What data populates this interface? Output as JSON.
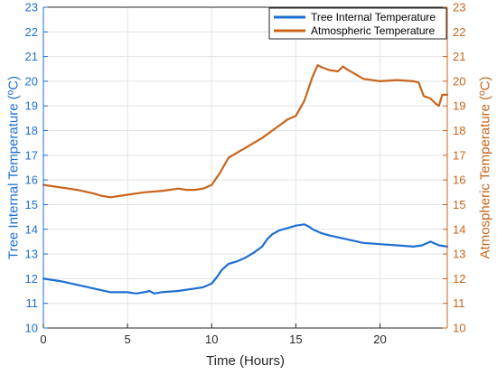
{
  "colors": {
    "tree": "#1f6fd1",
    "atmo": "#c8651b",
    "grid": "#dfe3ea",
    "axis": "#262626",
    "legend_border": "#262626"
  },
  "chart_data": {
    "type": "line",
    "xlabel": "Time (Hours)",
    "ylabel": "Tree Internal Temperature (ºC)",
    "ylabel_right": "Atmospheric Temperature (ºC)",
    "xlim": [
      0,
      24
    ],
    "ylim": [
      10,
      23
    ],
    "ylim_right": [
      10,
      23
    ],
    "xticks": [
      0,
      5,
      10,
      15,
      20
    ],
    "yticks": [
      10,
      11,
      12,
      13,
      14,
      15,
      16,
      17,
      18,
      19,
      20,
      21,
      22,
      23
    ],
    "yticks_right": [
      10,
      11,
      12,
      13,
      14,
      15,
      16,
      17,
      18,
      19,
      20,
      21,
      22,
      23
    ],
    "grid": true,
    "legend_position": "top-right",
    "series": [
      {
        "name": "Tree Internal Temperature",
        "axis": "left",
        "x": [
          0,
          1,
          2,
          3,
          4,
          5,
          5.5,
          6,
          6.3,
          6.6,
          7,
          8,
          9,
          9.5,
          10,
          10.3,
          10.6,
          11,
          11.5,
          12,
          12.5,
          13,
          13.3,
          13.6,
          14,
          14.5,
          15,
          15.5,
          15.8,
          16,
          16.5,
          17,
          18,
          19,
          20,
          21,
          22,
          22.5,
          23,
          23.5,
          24
        ],
        "y": [
          12.0,
          11.9,
          11.75,
          11.6,
          11.45,
          11.45,
          11.4,
          11.45,
          11.5,
          11.4,
          11.45,
          11.5,
          11.6,
          11.65,
          11.8,
          12.05,
          12.35,
          12.6,
          12.7,
          12.85,
          13.05,
          13.3,
          13.6,
          13.8,
          13.95,
          14.05,
          14.15,
          14.2,
          14.1,
          14.0,
          13.85,
          13.75,
          13.6,
          13.45,
          13.4,
          13.35,
          13.3,
          13.35,
          13.5,
          13.35,
          13.3
        ]
      },
      {
        "name": "Atmospheric Temperature",
        "axis": "right",
        "x": [
          0,
          1,
          2,
          3,
          3.5,
          4,
          4.5,
          5,
          6,
          7,
          7.5,
          8,
          8.5,
          9,
          9.5,
          10,
          10.5,
          11,
          11.5,
          12,
          12.5,
          13,
          13.5,
          14,
          14.5,
          15,
          15.5,
          16,
          16.3,
          16.6,
          17,
          17.5,
          17.8,
          18,
          18.5,
          19,
          20,
          21,
          22,
          22.3,
          22.6,
          23,
          23.3,
          23.5,
          23.7,
          24
        ],
        "y": [
          15.8,
          15.7,
          15.6,
          15.45,
          15.35,
          15.3,
          15.35,
          15.4,
          15.5,
          15.55,
          15.6,
          15.65,
          15.6,
          15.6,
          15.65,
          15.8,
          16.3,
          16.9,
          17.1,
          17.3,
          17.5,
          17.7,
          17.95,
          18.2,
          18.45,
          18.6,
          19.2,
          20.2,
          20.65,
          20.55,
          20.45,
          20.4,
          20.6,
          20.5,
          20.3,
          20.1,
          20.0,
          20.05,
          20.0,
          19.95,
          19.4,
          19.3,
          19.1,
          19.0,
          19.45,
          19.45
        ]
      }
    ]
  }
}
